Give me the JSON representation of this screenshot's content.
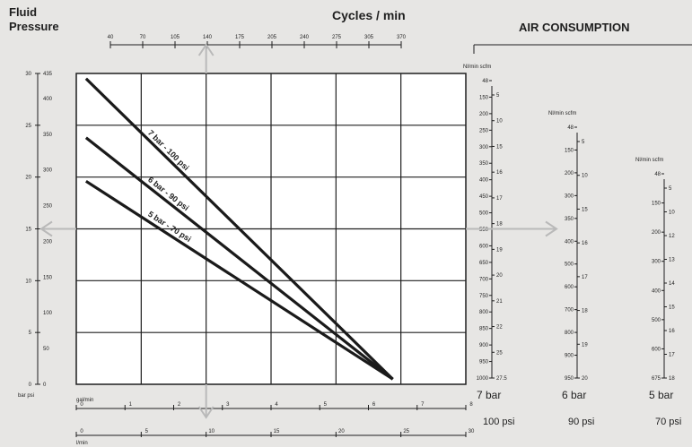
{
  "chart_data": {
    "type": "line",
    "title_left_1": "Fluid",
    "title_left_2": "Pressure",
    "top_axis_label": "Cycles / min",
    "air_title": "AIR CONSUMPTION",
    "cycles_ticks": [
      "40",
      "70",
      "105",
      "140",
      "175",
      "205",
      "240",
      "275",
      "305",
      "370"
    ],
    "bar_ticks": [
      "0",
      "5",
      "10",
      "15",
      "20",
      "25",
      "30"
    ],
    "psi_ticks": [
      "0",
      "50",
      "100",
      "150",
      "200",
      "250",
      "300",
      "350",
      "400",
      "435"
    ],
    "left_units": "bar psi",
    "gal_label": "gal/min",
    "gal_ticks": [
      "0",
      "1",
      "2",
      "3",
      "4",
      "5",
      "6",
      "7",
      "8"
    ],
    "lmin_label": "l/min",
    "lmin_ticks": [
      "0",
      "5",
      "10",
      "15",
      "20",
      "25",
      "30"
    ],
    "series": [
      {
        "name": "7 bar - 100 psi",
        "x": [
          0.2,
          6.5
        ],
        "y": [
          29.5,
          0.5
        ]
      },
      {
        "name": "6 bar - 90 psi",
        "x": [
          0.2,
          6.5
        ],
        "y": [
          23.8,
          0.5
        ]
      },
      {
        "name": "5 bar - 70 psi",
        "x": [
          0.2,
          6.5
        ],
        "y": [
          19.6,
          0.5
        ]
      }
    ],
    "xlim": [
      0,
      8
    ],
    "ylim": [
      0,
      30
    ],
    "grid": true,
    "air_scales": [
      {
        "bar": "7 bar",
        "psi": "100 psi",
        "unit": "Nl/min scfm",
        "left_ticks": [
          "48",
          "150",
          "200",
          "250",
          "300",
          "350",
          "400",
          "450",
          "500",
          "550",
          "600",
          "650",
          "700",
          "750",
          "800",
          "850",
          "900",
          "950",
          "1000"
        ],
        "right_ticks": [
          "5",
          "10",
          "15",
          "16",
          "17",
          "18",
          "19",
          "20",
          "21",
          "22",
          "25",
          "27.5"
        ]
      },
      {
        "bar": "6 bar",
        "psi": "90 psi",
        "unit": "Nl/min scfm",
        "left_ticks": [
          "48",
          "150",
          "200",
          "300",
          "350",
          "400",
          "500",
          "600",
          "700",
          "800",
          "900",
          "950"
        ],
        "right_ticks": [
          "5",
          "10",
          "15",
          "16",
          "17",
          "18",
          "19",
          "20"
        ]
      },
      {
        "bar": "5 bar",
        "psi": "70 psi",
        "unit": "Nl/min scfm",
        "left_ticks": [
          "48",
          "150",
          "200",
          "300",
          "400",
          "500",
          "600",
          "675"
        ],
        "right_ticks": [
          "5",
          "10",
          "12",
          "13",
          "14",
          "15",
          "16",
          "17",
          "18"
        ]
      }
    ]
  }
}
